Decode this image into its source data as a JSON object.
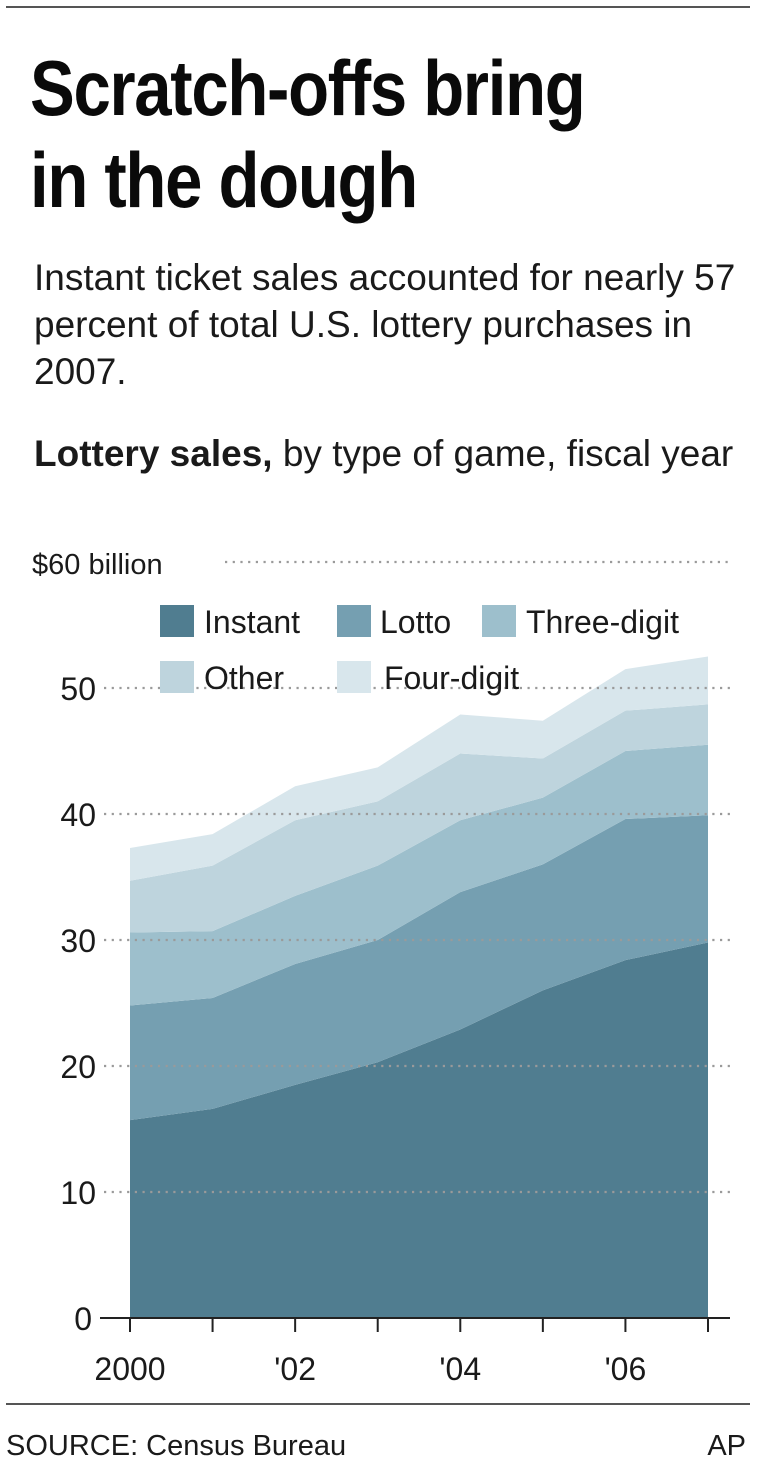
{
  "headline": "Scratch-offs bring in the dough",
  "subhead": "Instant ticket sales accounted for nearly 57 percent of total U.S. lottery purchases in 2007.",
  "chart_label": {
    "bold": "Lottery sales,",
    "rest": " by type of game, fiscal year"
  },
  "source": "SOURCE: Census Bureau",
  "credit": "AP",
  "colors": {
    "Instant": "#507d90",
    "Lotto": "#759fb1",
    "Three-digit": "#9dbfcc",
    "Other": "#bed4dd",
    "Four-digit": "#d8e6ec"
  },
  "chart_data": {
    "type": "area",
    "stacked": true,
    "x": [
      2000,
      2001,
      2002,
      2003,
      2004,
      2005,
      2006,
      2007
    ],
    "x_tick_labels": [
      "2000",
      "",
      "'02",
      "",
      "'04",
      "",
      "'06",
      ""
    ],
    "y_tick_labels": [
      "0",
      "10",
      "20",
      "30",
      "40",
      "50",
      "$60 billion"
    ],
    "ylim": [
      0,
      60
    ],
    "grid": "dotted horizontal",
    "legend_placement": "top, inside plot",
    "series": [
      {
        "name": "Instant",
        "values": [
          15.7,
          16.6,
          18.5,
          20.3,
          22.9,
          26.0,
          28.4,
          29.8
        ]
      },
      {
        "name": "Lotto",
        "values": [
          9.1,
          8.8,
          9.6,
          9.7,
          10.9,
          10.0,
          11.2,
          10.1
        ]
      },
      {
        "name": "Three-digit",
        "values": [
          5.8,
          5.3,
          5.4,
          5.9,
          5.7,
          5.3,
          5.4,
          5.6
        ]
      },
      {
        "name": "Other",
        "values": [
          4.1,
          5.2,
          6.0,
          5.1,
          5.3,
          3.1,
          3.2,
          3.2
        ]
      },
      {
        "name": "Four-digit",
        "values": [
          2.6,
          2.5,
          2.7,
          2.7,
          3.1,
          3.0,
          3.3,
          3.8
        ]
      }
    ]
  }
}
